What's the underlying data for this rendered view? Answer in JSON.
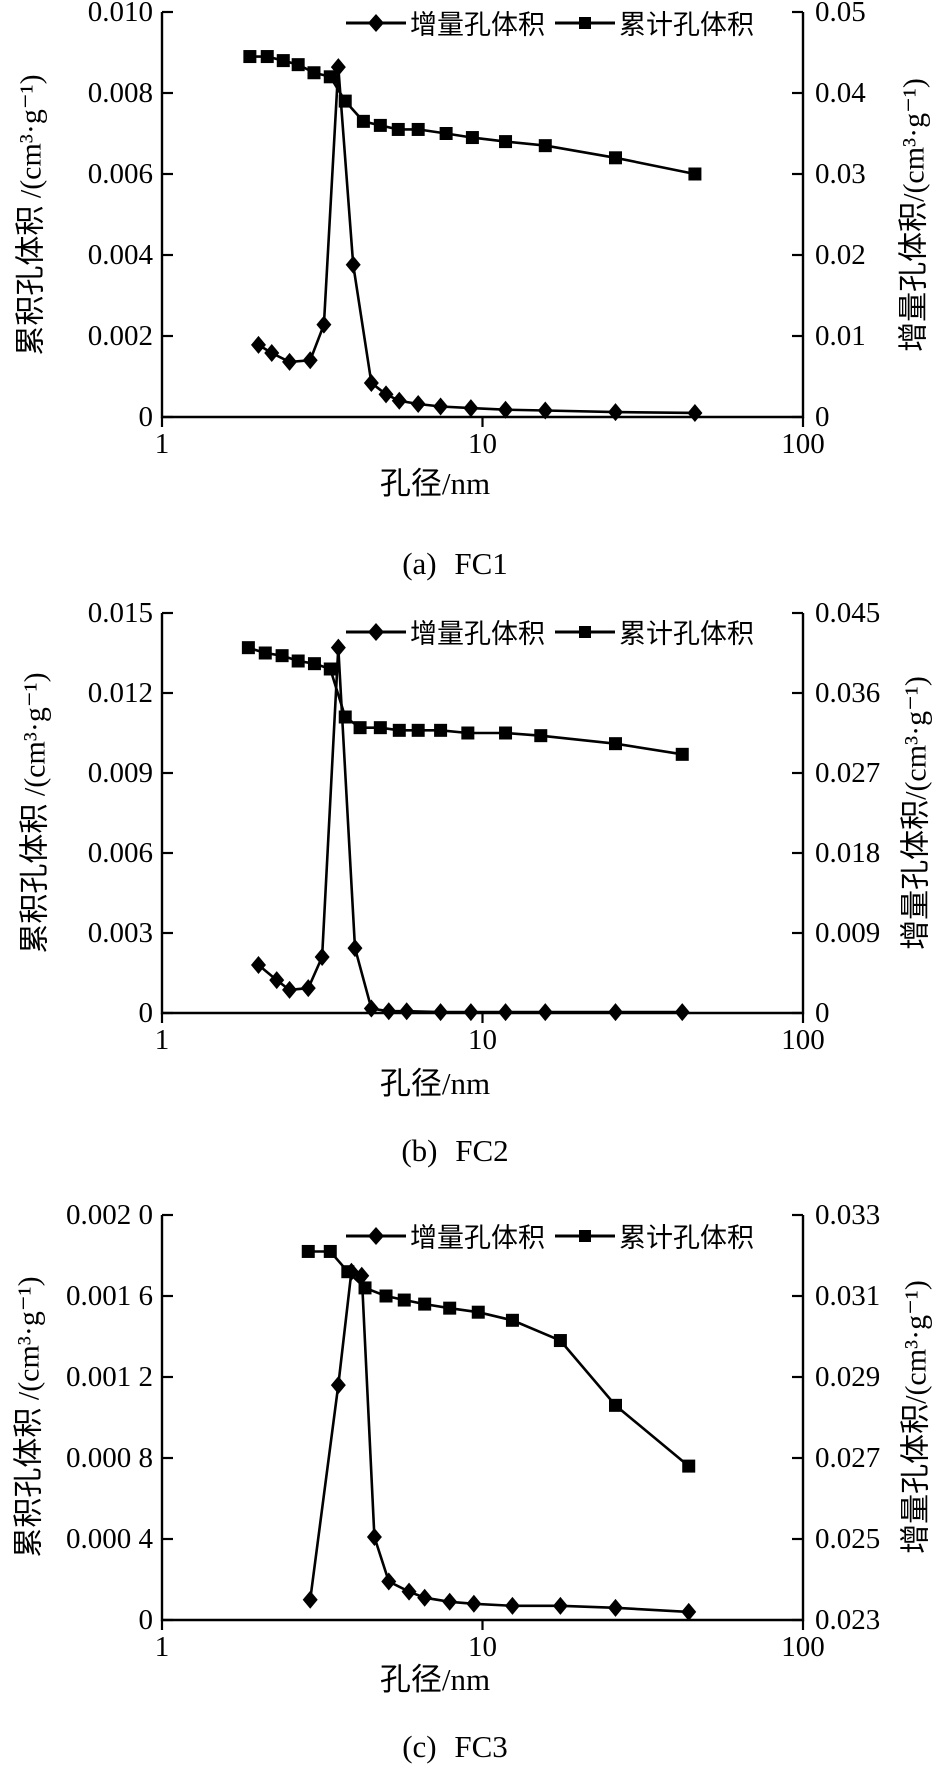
{
  "page": {
    "background": "#ffffff",
    "ink": "#000000"
  },
  "chart_data": [
    {
      "id": "a",
      "type": "line",
      "caption": "(a) FC1",
      "xlabel": "孔径/nm",
      "x_scale": "log",
      "x_range": [
        1,
        100
      ],
      "x_ticks": [
        "1",
        "10",
        "100"
      ],
      "grid": false,
      "legend_position": "top-right-inside",
      "left_axis": {
        "label": "累积孔体积 /(cm³·g⁻¹)",
        "range": [
          0,
          0.01
        ],
        "ticks": [
          "0.010",
          "0.008",
          "0.006",
          "0.004",
          "0.002",
          "0"
        ]
      },
      "right_axis": {
        "label": "增量孔体积/(cm³·g⁻¹)",
        "range": [
          0,
          0.05
        ],
        "ticks": [
          "0.05",
          "0.04",
          "0.03",
          "0.02",
          "0.01",
          "0"
        ]
      },
      "series": [
        {
          "name": "增量孔体积",
          "marker": "diamond",
          "axis": "right",
          "x": [
            2.0,
            2.2,
            2.5,
            2.9,
            3.2,
            3.55,
            3.95,
            4.5,
            5.0,
            5.5,
            6.3,
            7.4,
            9.2,
            11.8,
            15.7,
            26,
            46
          ],
          "y": [
            0.0089,
            0.0079,
            0.0068,
            0.007,
            0.0114,
            0.0432,
            0.0188,
            0.0042,
            0.0028,
            0.002,
            0.0016,
            0.0013,
            0.0011,
            0.0009,
            0.0008,
            0.0006,
            0.0005
          ]
        },
        {
          "name": "累计孔体积",
          "marker": "square",
          "axis": "left",
          "x": [
            1.88,
            2.13,
            2.39,
            2.66,
            2.98,
            3.35,
            3.73,
            4.25,
            4.8,
            5.46,
            6.3,
            7.7,
            9.3,
            11.8,
            15.7,
            26,
            46
          ],
          "y": [
            0.0089,
            0.0089,
            0.0088,
            0.0087,
            0.0085,
            0.0084,
            0.0078,
            0.0073,
            0.0072,
            0.0071,
            0.0071,
            0.007,
            0.0069,
            0.0068,
            0.0067,
            0.0064,
            0.006
          ]
        }
      ]
    },
    {
      "id": "b",
      "type": "line",
      "caption": "(b) FC2",
      "xlabel": "孔径/nm",
      "x_scale": "log",
      "x_range": [
        1,
        100
      ],
      "x_ticks": [
        "1",
        "10",
        "100"
      ],
      "grid": false,
      "legend_position": "top-right-inside",
      "left_axis": {
        "label": "累积孔体积 /(cm³·g⁻¹)",
        "range": [
          0,
          0.015
        ],
        "ticks": [
          "0.015",
          "0.012",
          "0.009",
          "0.006",
          "0.003",
          "0"
        ]
      },
      "right_axis": {
        "label": "增量孔体积/(cm³·g⁻¹)",
        "range": [
          0,
          0.045
        ],
        "ticks": [
          "0.045",
          "0.036",
          "0.027",
          "0.018",
          "0.009",
          "0"
        ]
      },
      "series": [
        {
          "name": "增量孔体积",
          "marker": "diamond",
          "axis": "right",
          "x": [
            2.0,
            2.28,
            2.5,
            2.86,
            3.16,
            3.55,
            4.0,
            4.5,
            5.1,
            5.8,
            7.4,
            9.2,
            11.8,
            15.7,
            26,
            42
          ],
          "y": [
            0.0054,
            0.0037,
            0.0026,
            0.0028,
            0.0063,
            0.0411,
            0.0073,
            0.0005,
            0.0002,
            0.0002,
            0.0001,
            0.0001,
            0.0001,
            0.0001,
            0.0001,
            0.0001
          ]
        },
        {
          "name": "累计孔体积",
          "marker": "square",
          "axis": "left",
          "x": [
            1.86,
            2.1,
            2.37,
            2.66,
            2.99,
            3.35,
            3.73,
            4.15,
            4.8,
            5.5,
            6.3,
            7.4,
            9.0,
            11.8,
            15.2,
            26,
            42
          ],
          "y": [
            0.0137,
            0.0135,
            0.0134,
            0.0132,
            0.0131,
            0.0129,
            0.0111,
            0.0107,
            0.0107,
            0.0106,
            0.0106,
            0.0106,
            0.0105,
            0.0105,
            0.0104,
            0.0101,
            0.0097
          ]
        }
      ]
    },
    {
      "id": "c",
      "type": "line",
      "caption": "(c) FC3",
      "xlabel": "孔径/nm",
      "x_scale": "log",
      "x_range": [
        1,
        100
      ],
      "x_ticks": [
        "1",
        "10",
        "100"
      ],
      "grid": false,
      "legend_position": "top-right-inside",
      "left_axis": {
        "label": "累积孔体积 /(cm³·g⁻¹)",
        "range": [
          0,
          0.002
        ],
        "ticks": [
          "0.002 0",
          "0.001 6",
          "0.001 2",
          "0.000 8",
          "0.000 4",
          "0"
        ]
      },
      "right_axis": {
        "label": "增量孔体积/(cm³·g⁻¹)",
        "range": [
          0.023,
          0.033
        ],
        "ticks": [
          "0.033",
          "0.031",
          "0.029",
          "0.027",
          "0.025",
          "0.023"
        ]
      },
      "series": [
        {
          "name": "增量孔体积",
          "marker": "diamond",
          "axis": "left",
          "x": [
            2.9,
            3.55,
            3.9,
            4.2,
            4.6,
            5.1,
            5.9,
            6.6,
            7.9,
            9.4,
            12.4,
            17.5,
            26,
            44
          ],
          "y": [
            0.0001,
            0.00116,
            0.00172,
            0.0017,
            0.00041,
            0.00019,
            0.00014,
            0.00011,
            9e-05,
            8e-05,
            7e-05,
            7e-05,
            6e-05,
            4e-05
          ]
        },
        {
          "name": "累计孔体积",
          "marker": "square",
          "axis": "right",
          "x": [
            2.86,
            3.35,
            3.8,
            4.3,
            5.0,
            5.7,
            6.6,
            7.9,
            9.7,
            12.4,
            17.5,
            26,
            44
          ],
          "y": [
            0.0321,
            0.0321,
            0.0316,
            0.0312,
            0.031,
            0.0309,
            0.0308,
            0.0307,
            0.0306,
            0.0304,
            0.0299,
            0.0283,
            0.0268
          ]
        }
      ]
    }
  ]
}
